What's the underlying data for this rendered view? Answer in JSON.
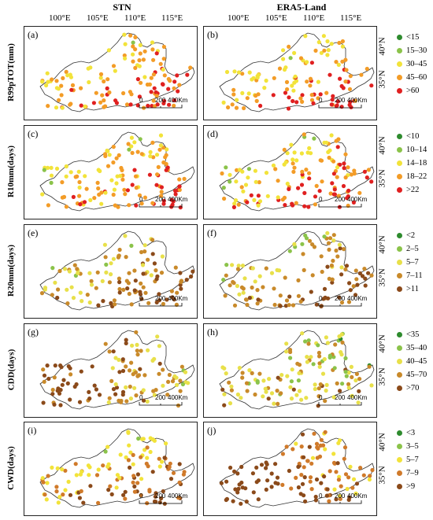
{
  "columns": [
    "STN",
    "ERA5-Land"
  ],
  "lon_labels": [
    "100°E",
    "105°E",
    "110°E",
    "115°E"
  ],
  "lat_labels": [
    "40°N",
    "35°N"
  ],
  "scale_bar": {
    "labels": [
      "0",
      "200",
      "400Km"
    ]
  },
  "rows": [
    {
      "index_label": "R99pTOT(mm)",
      "panels": [
        {
          "label": "(a)"
        },
        {
          "label": "(b)"
        }
      ],
      "legend": [
        {
          "text": "<15",
          "color": "#2e8b2e"
        },
        {
          "text": "15–30",
          "color": "#8bc34a"
        },
        {
          "text": "30–45",
          "color": "#f2e33a"
        },
        {
          "text": "45–60",
          "color": "#f39c27"
        },
        {
          "text": ">60",
          "color": "#e02020"
        }
      ]
    },
    {
      "index_label": "R10mm(days)",
      "panels": [
        {
          "label": "(c)"
        },
        {
          "label": "(d)"
        }
      ],
      "legend": [
        {
          "text": "<10",
          "color": "#2e8b2e"
        },
        {
          "text": "10–14",
          "color": "#8bc34a"
        },
        {
          "text": "14–18",
          "color": "#f2e33a"
        },
        {
          "text": "18–22",
          "color": "#f39c27"
        },
        {
          "text": ">22",
          "color": "#e02020"
        }
      ]
    },
    {
      "index_label": "R20mm(days)",
      "panels": [
        {
          "label": "(e)"
        },
        {
          "label": "(f)"
        }
      ],
      "legend": [
        {
          "text": "<2",
          "color": "#2e8b2e"
        },
        {
          "text": "2–5",
          "color": "#8bc34a"
        },
        {
          "text": "5–7",
          "color": "#e8e04a"
        },
        {
          "text": "7–11",
          "color": "#c98a2a"
        },
        {
          "text": ">11",
          "color": "#8b4a1a"
        }
      ]
    },
    {
      "index_label": "CDD(days)",
      "panels": [
        {
          "label": "(g)"
        },
        {
          "label": "(h)"
        }
      ],
      "legend": [
        {
          "text": "<35",
          "color": "#2e8b2e"
        },
        {
          "text": "35–40",
          "color": "#8bc34a"
        },
        {
          "text": "40–45",
          "color": "#e8e04a"
        },
        {
          "text": "45–70",
          "color": "#c98a2a"
        },
        {
          "text": ">70",
          "color": "#8b4a1a"
        }
      ]
    },
    {
      "index_label": "CWD(days)",
      "panels": [
        {
          "label": "(i)"
        },
        {
          "label": "(j)"
        }
      ],
      "legend": [
        {
          "text": "<3",
          "color": "#2e8b2e"
        },
        {
          "text": "3–5",
          "color": "#8bc34a"
        },
        {
          "text": "5–7",
          "color": "#f2e33a"
        },
        {
          "text": "7–9",
          "color": "#d07a2a"
        },
        {
          "text": ">9",
          "color": "#8b4a1a"
        }
      ]
    }
  ]
}
